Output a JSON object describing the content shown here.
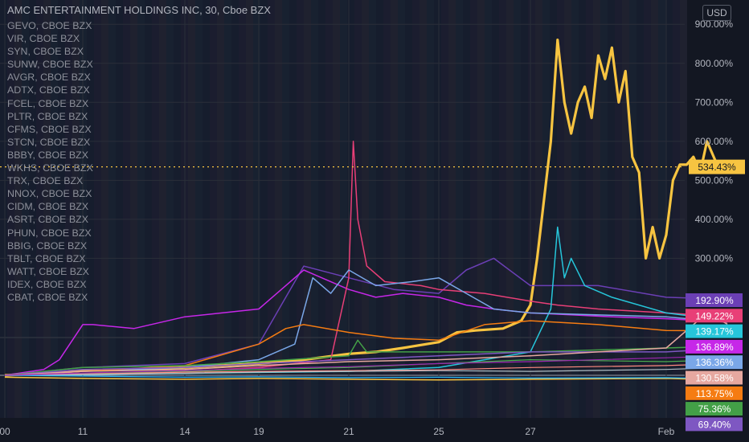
{
  "header": {
    "title": "AMC ENTERTAINMENT HOLDINGS INC, 30, Cboe BZX",
    "currency": "USD"
  },
  "legend_items": [
    "GEVO, CBOE BZX",
    "VIR, CBOE BZX",
    "SYN, CBOE BZX",
    "SUNW, CBOE BZX",
    "AVGR, CBOE BZX",
    "ADTX, CBOE BZX",
    "FCEL, CBOE BZX",
    "PLTR, CBOE BZX",
    "CFMS, CBOE BZX",
    "STCN, CBOE BZX",
    "BBBY, CBOE BZX",
    "WKHS, CBOE BZX",
    "TRX, CBOE BZX",
    "NNOX, CBOE BZX",
    "CIDM, CBOE BZX",
    "ASRT, CBOE BZX",
    "PHUN, CBOE BZX",
    "BBIG, CBOE BZX",
    "TBLT, CBOE BZX",
    "WATT, CBOE BZX",
    "IDEX, CBOE BZX",
    "CBAT, CBOE BZX"
  ],
  "chart_data": {
    "type": "line",
    "y_unit": "%",
    "ylim": [
      -25,
      935
    ],
    "y_ticks": [
      300,
      400,
      500,
      600,
      700,
      800,
      900
    ],
    "y_tick_labels": [
      "300.00%",
      "400.00%",
      "500.00%",
      "600.00%",
      "700.00%",
      "800.00%",
      "900.00%"
    ],
    "x_labels": [
      {
        "label": "00",
        "t": 0
      },
      {
        "label": "11",
        "t": 1
      },
      {
        "label": "14",
        "t": 2
      },
      {
        "label": "19",
        "t": 3
      },
      {
        "label": "21",
        "t": 4
      },
      {
        "label": "25",
        "t": 5
      },
      {
        "label": "27",
        "t": 6
      },
      {
        "label": "Feb",
        "t": 7
      }
    ],
    "current_line": {
      "value": 534.43,
      "label": "534.43%",
      "color": "#f7c441"
    },
    "end_labels": [
      {
        "label": "192.90%",
        "value": 192.9,
        "color": "#6b3fb5"
      },
      {
        "label": "149.22%",
        "value": 149.22,
        "color": "#e83f77"
      },
      {
        "label": "139.17%",
        "value": 139.17,
        "color": "#26c6da"
      },
      {
        "label": "136.89%",
        "value": 136.89,
        "color": "#c627e8"
      },
      {
        "label": "136.36%",
        "value": 136.36,
        "color": "#7aa7e8"
      },
      {
        "label": "130.58%",
        "value": 130.58,
        "color": "#e6a8a0"
      },
      {
        "label": "113.75%",
        "value": 113.75,
        "color": "#f57c12"
      },
      {
        "label": "75.36%",
        "value": 75.36,
        "color": "#43a047"
      },
      {
        "label": "69.40%",
        "value": 69.4,
        "color": "#7e57c2"
      }
    ],
    "series": [
      {
        "color": "#f7c441",
        "width": 3.2,
        "points": [
          [
            0,
            0
          ],
          [
            0.5,
            5
          ],
          [
            1,
            12
          ],
          [
            1.5,
            15
          ],
          [
            2,
            20
          ],
          [
            2.5,
            25
          ],
          [
            3,
            30
          ],
          [
            3.5,
            40
          ],
          [
            4,
            55
          ],
          [
            4.3,
            60
          ],
          [
            4.6,
            70
          ],
          [
            5,
            85
          ],
          [
            5.2,
            110
          ],
          [
            5.4,
            115
          ],
          [
            5.7,
            120
          ],
          [
            5.9,
            140
          ],
          [
            6,
            180
          ],
          [
            6.05,
            300
          ],
          [
            6.1,
            450
          ],
          [
            6.15,
            600
          ],
          [
            6.2,
            860
          ],
          [
            6.25,
            700
          ],
          [
            6.3,
            620
          ],
          [
            6.35,
            700
          ],
          [
            6.4,
            740
          ],
          [
            6.45,
            660
          ],
          [
            6.5,
            820
          ],
          [
            6.55,
            760
          ],
          [
            6.6,
            840
          ],
          [
            6.65,
            700
          ],
          [
            6.7,
            780
          ],
          [
            6.75,
            560
          ],
          [
            6.8,
            520
          ],
          [
            6.85,
            300
          ],
          [
            6.9,
            380
          ],
          [
            6.95,
            300
          ],
          [
            7,
            360
          ],
          [
            7.05,
            500
          ],
          [
            7.1,
            540
          ],
          [
            7.15,
            540
          ],
          [
            7.2,
            560
          ],
          [
            7.25,
            520
          ],
          [
            7.3,
            600
          ],
          [
            7.35,
            560
          ],
          [
            7.4,
            520
          ],
          [
            7.45,
            534
          ]
        ]
      },
      {
        "color": "#f7c441",
        "width": 1.5,
        "points": [
          [
            0,
            -5
          ],
          [
            1,
            -8
          ],
          [
            2,
            -10
          ],
          [
            3,
            -8
          ],
          [
            4,
            -10
          ],
          [
            5,
            -12
          ],
          [
            6,
            -10
          ],
          [
            7,
            -8
          ],
          [
            7.45,
            -12
          ]
        ]
      },
      {
        "color": "#6b3fb5",
        "width": 1.5,
        "points": [
          [
            0,
            0
          ],
          [
            1,
            20
          ],
          [
            2,
            30
          ],
          [
            3,
            80
          ],
          [
            3.5,
            280
          ],
          [
            4,
            250
          ],
          [
            4.5,
            220
          ],
          [
            5,
            210
          ],
          [
            5.3,
            270
          ],
          [
            5.6,
            300
          ],
          [
            6,
            230
          ],
          [
            6.5,
            230
          ],
          [
            7,
            200
          ],
          [
            7.45,
            195
          ]
        ]
      },
      {
        "color": "#c627e8",
        "width": 1.5,
        "points": [
          [
            0,
            0
          ],
          [
            0.5,
            15
          ],
          [
            0.7,
            40
          ],
          [
            1,
            130
          ],
          [
            1.1,
            130
          ],
          [
            1.5,
            120
          ],
          [
            2,
            150
          ],
          [
            2.5,
            160
          ],
          [
            3,
            170
          ],
          [
            3.3,
            230
          ],
          [
            3.5,
            270
          ],
          [
            3.7,
            250
          ],
          [
            4,
            220
          ],
          [
            4.3,
            200
          ],
          [
            4.6,
            210
          ],
          [
            5,
            200
          ],
          [
            5.3,
            180
          ],
          [
            5.6,
            170
          ],
          [
            6,
            160
          ],
          [
            6.3,
            155
          ],
          [
            6.6,
            150
          ],
          [
            7,
            145
          ],
          [
            7.45,
            137
          ]
        ]
      },
      {
        "color": "#e83f77",
        "width": 1.5,
        "points": [
          [
            0,
            0
          ],
          [
            1,
            5
          ],
          [
            2,
            10
          ],
          [
            3,
            20
          ],
          [
            3.8,
            40
          ],
          [
            4,
            250
          ],
          [
            4.05,
            600
          ],
          [
            4.1,
            400
          ],
          [
            4.2,
            280
          ],
          [
            4.4,
            240
          ],
          [
            4.8,
            230
          ],
          [
            5,
            220
          ],
          [
            5.5,
            210
          ],
          [
            6,
            190
          ],
          [
            6.2,
            180
          ],
          [
            6.5,
            170
          ],
          [
            7,
            160
          ],
          [
            7.45,
            150
          ]
        ]
      },
      {
        "color": "#26c6da",
        "width": 1.5,
        "points": [
          [
            0,
            0
          ],
          [
            2,
            5
          ],
          [
            4,
            10
          ],
          [
            5,
            20
          ],
          [
            5.5,
            40
          ],
          [
            6,
            60
          ],
          [
            6.15,
            170
          ],
          [
            6.2,
            380
          ],
          [
            6.25,
            250
          ],
          [
            6.3,
            300
          ],
          [
            6.4,
            230
          ],
          [
            6.6,
            200
          ],
          [
            7,
            160
          ],
          [
            7.45,
            140
          ]
        ]
      },
      {
        "color": "#7aa7e8",
        "width": 1.5,
        "points": [
          [
            0,
            0
          ],
          [
            1,
            10
          ],
          [
            2,
            20
          ],
          [
            3,
            40
          ],
          [
            3.4,
            80
          ],
          [
            3.6,
            250
          ],
          [
            3.8,
            210
          ],
          [
            4,
            270
          ],
          [
            4.3,
            230
          ],
          [
            4.7,
            240
          ],
          [
            5,
            250
          ],
          [
            5.3,
            210
          ],
          [
            5.6,
            170
          ],
          [
            6,
            160
          ],
          [
            7,
            150
          ],
          [
            7.45,
            136
          ]
        ]
      },
      {
        "color": "#f57c12",
        "width": 1.5,
        "points": [
          [
            0,
            0
          ],
          [
            1,
            10
          ],
          [
            2,
            25
          ],
          [
            3,
            80
          ],
          [
            3.3,
            120
          ],
          [
            3.5,
            130
          ],
          [
            4,
            110
          ],
          [
            4.5,
            95
          ],
          [
            5,
            90
          ],
          [
            5.5,
            130
          ],
          [
            6,
            140
          ],
          [
            6.5,
            130
          ],
          [
            7,
            115
          ],
          [
            7.45,
            114
          ]
        ]
      },
      {
        "color": "#43a047",
        "width": 1.5,
        "points": [
          [
            0,
            0
          ],
          [
            1,
            20
          ],
          [
            2,
            25
          ],
          [
            3,
            35
          ],
          [
            4,
            50
          ],
          [
            4.1,
            90
          ],
          [
            4.2,
            60
          ],
          [
            5,
            60
          ],
          [
            6,
            60
          ],
          [
            7,
            70
          ],
          [
            7.45,
            75
          ]
        ]
      },
      {
        "color": "#7e57c2",
        "width": 1.5,
        "points": [
          [
            0,
            0
          ],
          [
            1,
            15
          ],
          [
            2,
            20
          ],
          [
            3,
            30
          ],
          [
            4,
            40
          ],
          [
            5,
            50
          ],
          [
            6,
            60
          ],
          [
            7,
            60
          ],
          [
            7.45,
            69
          ]
        ]
      },
      {
        "color": "#e6a8a0",
        "width": 1.5,
        "points": [
          [
            0,
            0
          ],
          [
            1,
            10
          ],
          [
            2,
            15
          ],
          [
            3,
            25
          ],
          [
            4,
            35
          ],
          [
            5,
            40
          ],
          [
            6,
            50
          ],
          [
            7,
            70
          ],
          [
            7.3,
            160
          ],
          [
            7.45,
            131
          ]
        ]
      },
      {
        "color": "#4caf50",
        "width": 1.2,
        "points": [
          [
            0,
            0
          ],
          [
            1,
            5
          ],
          [
            2,
            10
          ],
          [
            3,
            15
          ],
          [
            4,
            20
          ],
          [
            5,
            30
          ],
          [
            6,
            40
          ],
          [
            7,
            35
          ],
          [
            7.45,
            40
          ]
        ]
      },
      {
        "color": "#ff8a80",
        "width": 1.2,
        "points": [
          [
            0,
            0
          ],
          [
            1,
            3
          ],
          [
            2,
            8
          ],
          [
            3,
            10
          ],
          [
            4,
            12
          ],
          [
            5,
            14
          ],
          [
            6,
            20
          ],
          [
            7,
            25
          ],
          [
            7.45,
            30
          ]
        ]
      },
      {
        "color": "#b0bec5",
        "width": 1.2,
        "points": [
          [
            0,
            0
          ],
          [
            1,
            2
          ],
          [
            2,
            5
          ],
          [
            3,
            8
          ],
          [
            4,
            10
          ],
          [
            5,
            12
          ],
          [
            6,
            10
          ],
          [
            7,
            15
          ],
          [
            7.45,
            20
          ]
        ]
      },
      {
        "color": "#29b6f6",
        "width": 1.2,
        "points": [
          [
            0,
            0
          ],
          [
            1,
            -2
          ],
          [
            2,
            -5
          ],
          [
            3,
            -4
          ],
          [
            4,
            -6
          ],
          [
            5,
            -5
          ],
          [
            6,
            -7
          ],
          [
            7,
            -6
          ],
          [
            7.45,
            -9
          ]
        ]
      },
      {
        "color": "#9c27b0",
        "width": 1.2,
        "points": [
          [
            0,
            0
          ],
          [
            1,
            6
          ],
          [
            2,
            12
          ],
          [
            3,
            18
          ],
          [
            4,
            22
          ],
          [
            5,
            30
          ],
          [
            6,
            35
          ],
          [
            7,
            45
          ],
          [
            7.45,
            50
          ]
        ]
      }
    ]
  }
}
